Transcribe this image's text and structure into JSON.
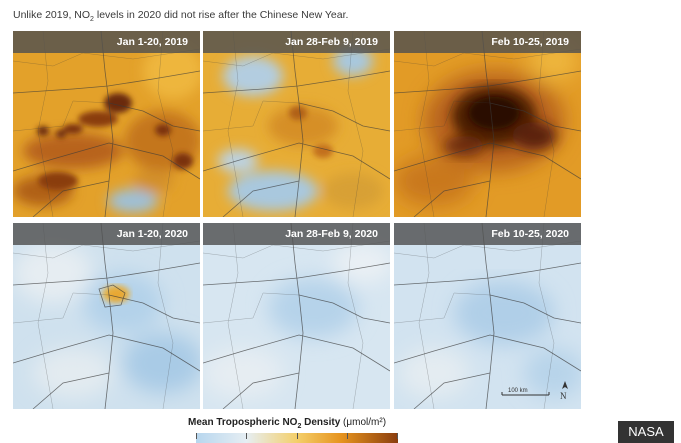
{
  "caption": {
    "prefix": "Unlike 2019, NO",
    "subscript": "2",
    "suffix": " levels in 2020 did not rise after the Chinese New Year."
  },
  "panels": [
    {
      "label": "Jan 1-20, 2019"
    },
    {
      "label": "Jan 28-Feb 9, 2019"
    },
    {
      "label": "Feb 10-25, 2019"
    },
    {
      "label": "Jan 1-20, 2020"
    },
    {
      "label": "Jan 28-Feb 9, 2020"
    },
    {
      "label": "Feb 10-25, 2020"
    }
  ],
  "scale_bar": {
    "label": "100 km"
  },
  "north_arrow": {
    "label": "N"
  },
  "legend": {
    "title_prefix": "Mean Tropospheric NO",
    "title_subscript": "2",
    "title_bold_suffix": " Density",
    "units": " (μmol/m²)"
  },
  "credit": "NASA",
  "colors": {
    "low_blue": "#b7d6ee",
    "mid_orange": "#e6a42a",
    "high_brown": "#3a1504",
    "header_gray": "#505050"
  }
}
